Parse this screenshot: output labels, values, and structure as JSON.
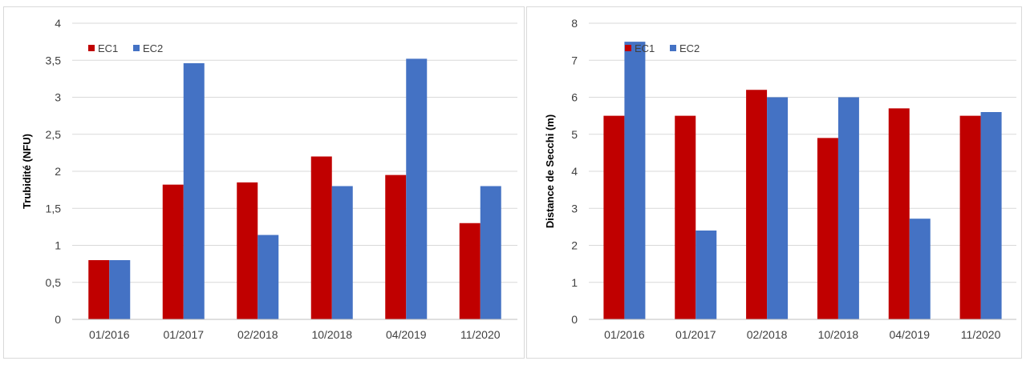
{
  "chart_data": [
    {
      "type": "bar",
      "categories": [
        "01/2016",
        "01/2017",
        "02/2018",
        "10/2018",
        "04/2019",
        "11/2020"
      ],
      "series": [
        {
          "name": "EC1",
          "color": "#c00000",
          "values": [
            0.8,
            1.82,
            1.85,
            2.2,
            1.95,
            1.3
          ]
        },
        {
          "name": "EC2",
          "color": "#4472c4",
          "values": [
            0.8,
            3.46,
            1.14,
            1.8,
            3.52,
            1.8
          ]
        }
      ],
      "ylabel": "Trubidité (NFU)",
      "ylim": [
        0,
        4
      ],
      "yticks": [
        "0",
        "0,5",
        "1",
        "1,5",
        "2",
        "2,5",
        "3",
        "3,5",
        "4"
      ],
      "grid": true,
      "legend": "top-left"
    },
    {
      "type": "bar",
      "categories": [
        "01/2016",
        "01/2017",
        "02/2018",
        "10/2018",
        "04/2019",
        "11/2020"
      ],
      "series": [
        {
          "name": "EC1",
          "color": "#c00000",
          "values": [
            5.5,
            5.5,
            6.2,
            4.9,
            5.7,
            5.5
          ]
        },
        {
          "name": "EC2",
          "color": "#4472c4",
          "values": [
            7.5,
            2.4,
            6.0,
            6.0,
            2.72,
            5.6
          ]
        }
      ],
      "ylabel": "Distance de Secchi (m)",
      "ylim": [
        0,
        8
      ],
      "yticks": [
        "0",
        "1",
        "2",
        "3",
        "4",
        "5",
        "6",
        "7",
        "8"
      ],
      "grid": true,
      "legend": "top-left"
    }
  ]
}
